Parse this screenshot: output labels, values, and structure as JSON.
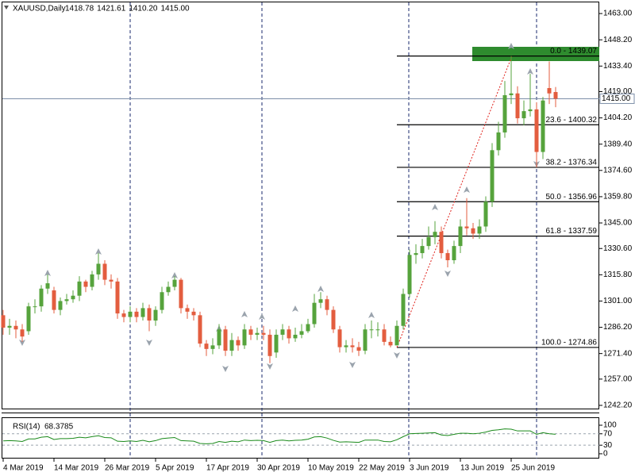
{
  "chart_data": {
    "type": "candlestick",
    "symbol": "XAUUSD,Daily",
    "header_ohlc": [
      1418.78,
      1421.61,
      {
        "value": 1410.2,
        "label": "1410.20"
      },
      {
        "value": 1415,
        "label": "1415.00"
      }
    ],
    "categories": [
      "4 Mar 2019",
      null,
      null,
      null,
      null,
      null,
      null,
      null,
      "14 Mar 2019",
      null,
      null,
      null,
      null,
      null,
      null,
      null,
      "26 Mar 2019",
      null,
      null,
      null,
      null,
      null,
      null,
      null,
      "5 Apr 2019",
      null,
      null,
      null,
      null,
      null,
      null,
      null,
      "17 Apr 2019",
      null,
      null,
      null,
      null,
      null,
      null,
      null,
      "30 Apr 2019",
      null,
      null,
      null,
      null,
      null,
      null,
      null,
      "10 May 2019",
      null,
      null,
      null,
      null,
      null,
      null,
      null,
      "22 May 2019",
      null,
      null,
      null,
      null,
      null,
      null,
      null,
      "3 Jun 2019",
      null,
      null,
      null,
      null,
      null,
      null,
      null,
      "13 Jun 2019",
      null,
      null,
      null,
      null,
      null,
      null,
      null,
      "25 Jun 2019",
      null,
      null,
      null,
      null,
      null,
      null,
      null
    ],
    "open": [
      1293,
      1286,
      1287,
      1285,
      1284,
      1298,
      1298,
      1308,
      1307,
      1296,
      1301,
      1302,
      1304,
      1312,
      1309,
      1316,
      1322,
      1313,
      1312,
      1294,
      1292,
      1295,
      1292,
      1297,
      1290,
      1296,
      1306,
      1309,
      1313,
      1297,
      1295,
      1293,
      1277,
      1274,
      1276,
      1285,
      1273,
      1279,
      1276,
      1285,
      1282,
      1283,
      1282,
      1272,
      1282,
      1285,
      1280,
      1282,
      1284,
      1288,
      1300,
      1302,
      1296,
      1285,
      1275,
      1276,
      1275,
      1273,
      1285,
      1285,
      1285,
      1278,
      1276,
      1287,
      1305,
      1327,
      1328,
      1332,
      1337,
      1340,
      1328,
      1324,
      1332,
      1343,
      1342,
      1339,
      1343,
      1357,
      1386,
      1396,
      1417,
      1418,
      1404,
      1408,
      1409,
      1385,
      1421,
      1418.78
    ],
    "high": [
      1296,
      1291,
      1290,
      1288,
      1300,
      1302,
      1310,
      1316,
      1309,
      1303,
      1305,
      1307,
      1315,
      1313,
      1318,
      1328,
      1324,
      1316,
      1314,
      1296,
      1298,
      1297,
      1300,
      1299,
      1298,
      1309,
      1312,
      1315,
      1314,
      1299,
      1297,
      1295,
      1279,
      1280,
      1288,
      1287,
      1283,
      1281,
      1288,
      1287,
      1286,
      1287,
      1285,
      1285,
      1288,
      1287,
      1286,
      1288,
      1291,
      1305,
      1306,
      1304,
      1298,
      1287,
      1279,
      1280,
      1278,
      1288,
      1290,
      1289,
      1288,
      1281,
      1290,
      1308,
      1330,
      1333,
      1336,
      1343,
      1346,
      1343,
      1330,
      1335,
      1347,
      1359,
      1345,
      1347,
      1360,
      1390,
      1402,
      1425,
      1439.07,
      1422,
      1414,
      1429,
      1413,
      1416,
      1436,
      1421.61
    ],
    "low": [
      1282,
      1282,
      1280,
      1278,
      1282,
      1294,
      1295,
      1305,
      1294,
      1293,
      1299,
      1300,
      1301,
      1306,
      1307,
      1313,
      1310,
      1308,
      1291,
      1289,
      1289,
      1289,
      1290,
      1284,
      1287,
      1294,
      1304,
      1307,
      1294,
      1291,
      1290,
      1275,
      1270,
      1271,
      1274,
      1270,
      1270,
      1273,
      1274,
      1279,
      1279,
      1279,
      1266,
      1269,
      1279,
      1277,
      1278,
      1280,
      1283,
      1286,
      1297,
      1293,
      1283,
      1272,
      1272,
      1272,
      1270,
      1271,
      1280,
      1281,
      1276,
      1274.86,
      1276,
      1285,
      1303,
      1322,
      1325,
      1330,
      1333,
      1325,
      1320,
      1322,
      1328,
      1338,
      1336,
      1336,
      1340,
      1354,
      1383,
      1393,
      1412,
      1401,
      1400,
      1405,
      1376.34,
      1381,
      1412,
      1410.2
    ],
    "close": [
      1286,
      1287,
      1285,
      1281,
      1298,
      1298,
      1308,
      1311,
      1296,
      1301,
      1302,
      1304,
      1312,
      1309,
      1316,
      1322,
      1313,
      1312,
      1294,
      1292,
      1295,
      1292,
      1297,
      1290,
      1296,
      1306,
      1309,
      1313,
      1297,
      1295,
      1293,
      1277,
      1274,
      1276,
      1285,
      1273,
      1279,
      1276,
      1285,
      1282,
      1283,
      1282,
      1270,
      1282,
      1285,
      1280,
      1282,
      1284,
      1288,
      1300,
      1302,
      1296,
      1285,
      1275,
      1276,
      1275,
      1273,
      1285,
      1285,
      1285,
      1278,
      1276,
      1287,
      1305,
      1327,
      1328,
      1332,
      1337,
      1340,
      1328,
      1324,
      1332,
      1343,
      1342,
      1339,
      1343,
      1357,
      1386,
      1396,
      1417,
      1418,
      1404,
      1408,
      1409,
      1385,
      1414,
      1418,
      1415
    ],
    "up_color": "#56a33c",
    "down_color": "#e35d3f",
    "ylim": [
      1240.4,
      1468.4
    ],
    "yticks": [
      {
        "value": 1463,
        "label": "1463.00"
      },
      {
        "value": 1448.2,
        "label": "1448.20"
      },
      {
        "value": 1433.4,
        "label": "1433.40"
      },
      {
        "value": 1419,
        "label": "1419.00"
      },
      {
        "value": 1404.2,
        "label": "1404.20"
      },
      {
        "value": 1389.4,
        "label": "1389.40"
      },
      {
        "value": 1374.6,
        "label": "1374.60"
      },
      {
        "value": 1359.8,
        "label": "1359.80"
      },
      {
        "value": 1345,
        "label": "1345.00"
      },
      {
        "value": 1330.6,
        "label": "1330.60"
      },
      {
        "value": 1315.8,
        "label": "1315.80"
      },
      {
        "value": 1301,
        "label": "1301.00"
      },
      {
        "value": 1286.2,
        "label": "1286.20"
      },
      {
        "value": 1271.4,
        "label": "1271.40"
      },
      {
        "value": 1257,
        "label": "1257.00"
      },
      {
        "value": 1242.2,
        "label": "1242.20"
      }
    ],
    "bid": {
      "value": 1415,
      "label": "1415.00"
    },
    "fib_levels": [
      {
        "value": 1439.07,
        "label": "0.0 - 1439.07"
      },
      {
        "value": 1400.32,
        "label": "23.6 - 1400.32"
      },
      {
        "value": 1376.34,
        "label": "38.2 - 1376.34"
      },
      {
        "value": 1356.96,
        "label": "50.0 - 1356.96"
      },
      {
        "value": 1337.59,
        "label": "61.8 - 1337.59"
      },
      {
        "value": 1274.86,
        "label": "100.0 - 1274.86"
      }
    ],
    "rsi": {
      "name": "RSI(14)",
      "last": 68.3785,
      "color": "#1a8a1a",
      "values": [
        45,
        46,
        45,
        43,
        52,
        52,
        58,
        60,
        50,
        53,
        53,
        54,
        58,
        56,
        60,
        63,
        57,
        56,
        44,
        43,
        45,
        43,
        47,
        42,
        46,
        53,
        55,
        57,
        46,
        45,
        44,
        36,
        35,
        36,
        43,
        40,
        44,
        42,
        48,
        46,
        47,
        46,
        40,
        46,
        48,
        45,
        47,
        48,
        51,
        59,
        60,
        55,
        47,
        41,
        42,
        41,
        40,
        48,
        48,
        48,
        43,
        42,
        49,
        60,
        70,
        71,
        72,
        73,
        74,
        66,
        64,
        68,
        72,
        72,
        70,
        72,
        76,
        82,
        84,
        87,
        86,
        80,
        80,
        80,
        68,
        74,
        70,
        68.3785
      ],
      "ylim": [
        -14,
        125
      ],
      "yticks": [
        100,
        70,
        30,
        0
      ],
      "levels": [
        70,
        30
      ]
    }
  }
}
